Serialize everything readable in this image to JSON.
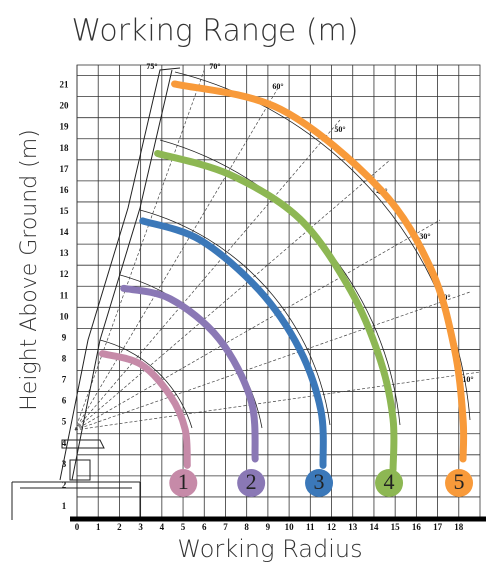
{
  "chart_data": {
    "type": "line",
    "title": "Working Range (m)",
    "x_label": "Working Radius",
    "y_label": "Height Above Ground (m)",
    "xlim": [
      0,
      19
    ],
    "ylim": [
      0,
      21.5
    ],
    "xticks": [
      0,
      1,
      2,
      3,
      4,
      5,
      6,
      7,
      8,
      9,
      10,
      11,
      12,
      13,
      14,
      15,
      16,
      17,
      18
    ],
    "yticks": [
      1,
      2,
      3,
      4,
      5,
      6,
      7,
      8,
      9,
      10,
      11,
      12,
      13,
      14,
      15,
      16,
      17,
      18,
      19,
      20,
      21
    ],
    "grid": true,
    "annotations": [
      "75°",
      "70°",
      "60°",
      "50°",
      "40°",
      "30°",
      "20°",
      "10°"
    ],
    "series": [
      {
        "name": "1",
        "color": "#c68aa8",
        "x": [
          1.2,
          3.0,
          4.4,
          5.1,
          5.2
        ],
        "values": [
          7.8,
          7.3,
          5.8,
          4.2,
          2.5
        ]
      },
      {
        "name": "2",
        "color": "#8a78b5",
        "x": [
          2.2,
          4.4,
          6.7,
          8.2,
          8.4
        ],
        "values": [
          10.9,
          10.4,
          8.5,
          5.6,
          2.8
        ]
      },
      {
        "name": "3",
        "color": "#3b78b9",
        "x": [
          3.1,
          5.8,
          8.6,
          10.5,
          11.5,
          11.6
        ],
        "values": [
          14.1,
          13.2,
          10.8,
          8.0,
          5.1,
          2.5
        ]
      },
      {
        "name": "4",
        "color": "#8db753",
        "x": [
          3.8,
          7.2,
          10.5,
          12.9,
          14.3,
          14.9,
          14.9
        ],
        "values": [
          17.3,
          16.3,
          14.2,
          10.8,
          7.5,
          4.7,
          2.3
        ]
      },
      {
        "name": "5",
        "color": "#f89a3a",
        "x": [
          4.6,
          9.6,
          14.3,
          16.7,
          17.8,
          18.2,
          18.2
        ],
        "values": [
          20.6,
          19.4,
          15.6,
          11.8,
          8.0,
          4.7,
          2.8
        ]
      }
    ]
  }
}
